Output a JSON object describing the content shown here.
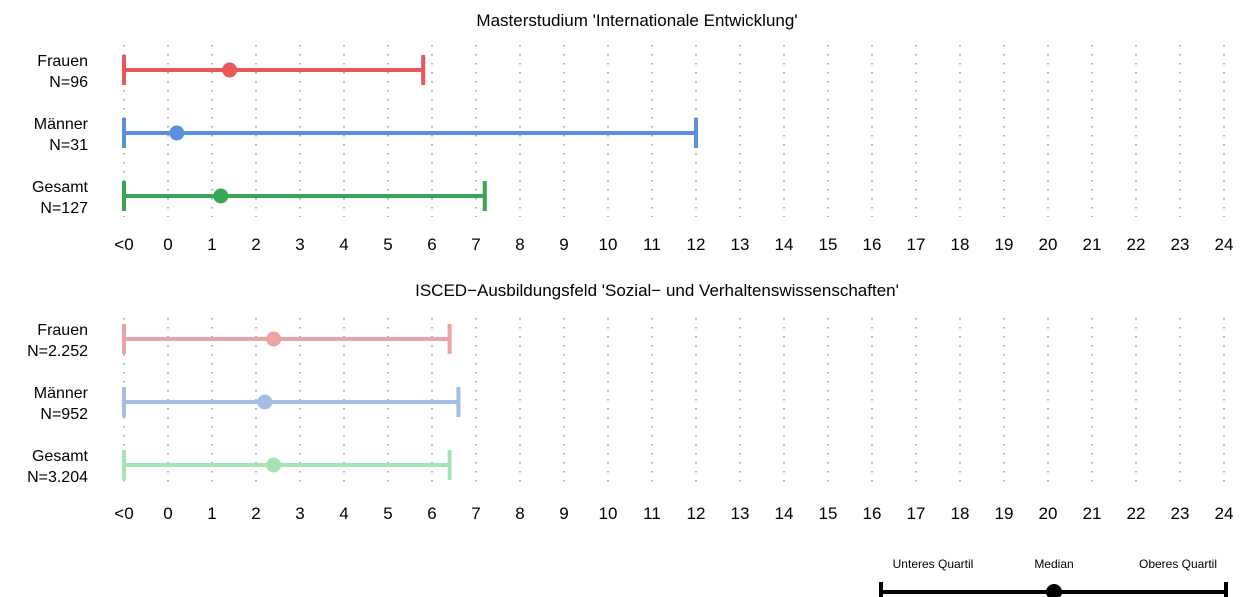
{
  "chart_data": [
    {
      "type": "range",
      "title": "Masterstudium 'Internationale Entwicklung'",
      "x_ticks": [
        "<0",
        "0",
        "1",
        "2",
        "3",
        "4",
        "5",
        "6",
        "7",
        "8",
        "9",
        "10",
        "11",
        "12",
        "13",
        "14",
        "15",
        "16",
        "17",
        "18",
        "19",
        "20",
        "21",
        "22",
        "23",
        "24"
      ],
      "xlim": [
        -1,
        24
      ],
      "grid": "vertical-dotted",
      "series": [
        {
          "name": "Frauen",
          "n_label": "N=96",
          "q1": -1,
          "median": 1.4,
          "q3": 5.8,
          "color": "#e8575a"
        },
        {
          "name": "Männer",
          "n_label": "N=31",
          "q1": -1,
          "median": 0.2,
          "q3": 12,
          "color": "#5b8de0"
        },
        {
          "name": "Gesamt",
          "n_label": "N=127",
          "q1": -1,
          "median": 1.2,
          "q3": 7.2,
          "color": "#3aa655"
        }
      ]
    },
    {
      "type": "range",
      "title": "ISCED−Ausbildungsfeld 'Sozial− und Verhaltenswissenschaften'",
      "x_ticks": [
        "<0",
        "0",
        "1",
        "2",
        "3",
        "4",
        "5",
        "6",
        "7",
        "8",
        "9",
        "10",
        "11",
        "12",
        "13",
        "14",
        "15",
        "16",
        "17",
        "18",
        "19",
        "20",
        "21",
        "22",
        "23",
        "24"
      ],
      "xlim": [
        -1,
        24
      ],
      "grid": "vertical-dotted",
      "series": [
        {
          "name": "Frauen",
          "n_label": "N=2.252",
          "q1": -1,
          "median": 2.4,
          "q3": 6.4,
          "color": "#eba4a5"
        },
        {
          "name": "Männer",
          "n_label": "N=952",
          "q1": -1,
          "median": 2.2,
          "q3": 6.6,
          "color": "#a3bde3"
        },
        {
          "name": "Gesamt",
          "n_label": "N=3.204",
          "q1": -1,
          "median": 2.4,
          "q3": 6.4,
          "color": "#a6e3b4"
        }
      ]
    }
  ],
  "legend": {
    "placement": "bottom-right",
    "lower_label": "Unteres Quartil",
    "median_label": "Median",
    "upper_label": "Oberes Quartil",
    "color": "#000000"
  }
}
